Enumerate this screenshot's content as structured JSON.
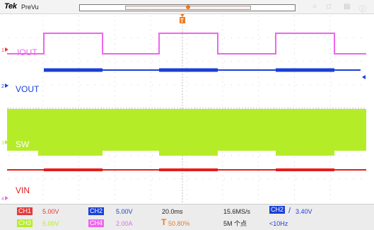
{
  "header": {
    "brand": "Tek",
    "mode": "PreVu",
    "trigger_marker_glyph": "T"
  },
  "screen": {
    "grid": true,
    "divisions_x": 10,
    "divisions_y": 8
  },
  "channels": [
    {
      "id": "CH1",
      "marker": "1",
      "label": "IOUT",
      "color": "#e23b3b",
      "trace_color": "#ee66ee",
      "scale": "5.00V"
    },
    {
      "id": "CH2",
      "marker": "2",
      "label": "VOUT",
      "color": "#1a3fd6",
      "trace_color": "#1a3fd6",
      "scale": "5.00V"
    },
    {
      "id": "CH3",
      "marker": "3",
      "label": "SW",
      "color": "#b5ec28",
      "trace_color": "#b5ec28",
      "scale": "5.00V"
    },
    {
      "id": "CH4",
      "marker": "4",
      "label": "VIN",
      "color": "#ee66ee",
      "trace_color": "#e71c1c",
      "scale": "2.00A"
    }
  ],
  "status": {
    "ch1_label": "CH1",
    "ch1_scale": "5.00V",
    "ch2_label": "CH2",
    "ch2_scale": "5.00V",
    "ch3_label": "CH3",
    "ch3_scale": "5.00V",
    "ch4_label": "CH4",
    "ch4_scale": "2.00A",
    "timebase": "20.0ms",
    "trigger_position": "50.80%",
    "sample_rate": "15.6MS/s",
    "record_length": "5M 个点",
    "trigger_source": "CH2",
    "trigger_slope": "/",
    "trigger_level": "3.40V",
    "trigger_freq": "<10Hz",
    "trigger_pos_glyph": "T"
  },
  "colors": {
    "ch1_box": "#e23b3b",
    "ch2_box": "#1a3fd6",
    "ch3_box": "#b5ec28",
    "ch4_box": "#ee66ee",
    "trigger_orange": "#f07a1a"
  },
  "icons": [
    "cursor-icon",
    "close-icon",
    "menu-icon",
    "help-icon",
    "trigger-level-arrow-icon"
  ]
}
